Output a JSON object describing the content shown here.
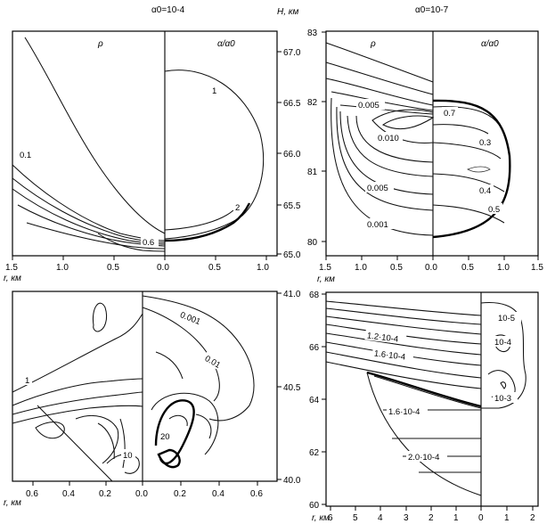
{
  "figure": {
    "top_left_title": "α0=10-4",
    "top_right_title": "α0=10-7"
  },
  "chart_data": [
    {
      "type": "contour",
      "panel": "top-left",
      "left_half_label": "ρ",
      "right_half_label": "α/α0",
      "xlabel": "r, км",
      "ylabel": "H, км",
      "x_ticks_left": [
        "1.5",
        "1.0",
        "0.5",
        "0.0"
      ],
      "x_ticks_right": [
        "0.5",
        "1.0"
      ],
      "y_ticks": [
        "65.0",
        "65.5",
        "66.0",
        "66.5",
        "67.0"
      ],
      "ylim": [
        65.0,
        67.2
      ],
      "contour_labels_left": [
        "0.1",
        "0.6"
      ],
      "contour_labels_right": [
        "1",
        "2"
      ]
    },
    {
      "type": "contour",
      "panel": "top-right",
      "left_half_label": "ρ",
      "right_half_label": "α/α0",
      "xlabel": "r, км",
      "x_ticks_left": [
        "1.5",
        "1.0",
        "0.5",
        "0.0"
      ],
      "x_ticks_right": [
        "0.5",
        "1.0",
        "1.5"
      ],
      "y_ticks": [
        "80",
        "81",
        "82",
        "83"
      ],
      "ylim": [
        79.8,
        83
      ],
      "contour_labels_left": [
        "0.005",
        "0.010",
        "0.005",
        "0.001"
      ],
      "contour_labels_right": [
        "0.7",
        "0.3",
        "0.4",
        "0.5"
      ]
    },
    {
      "type": "contour",
      "panel": "bottom-left",
      "xlabel": "r, км",
      "x_ticks_left": [
        "0.6",
        "0.4",
        "0.2",
        "0.0"
      ],
      "x_ticks_right": [
        "0.2",
        "0.4",
        "0.6"
      ],
      "y_ticks": [
        "40.0",
        "40.5",
        "41.0"
      ],
      "ylim": [
        40.0,
        41.0
      ],
      "contour_labels_left": [
        "1",
        "10"
      ],
      "contour_labels_right": [
        "0.001",
        "0.01",
        "20"
      ]
    },
    {
      "type": "contour",
      "panel": "bottom-right",
      "xlabel": "r, км",
      "x_ticks_left": [
        "6",
        "5",
        "4",
        "3",
        "2",
        "1",
        "0"
      ],
      "x_ticks_right": [
        "1",
        "2"
      ],
      "y_ticks": [
        "60",
        "62",
        "64",
        "66",
        "68"
      ],
      "ylim": [
        60,
        68
      ],
      "contour_labels_left": [
        "1.2·10-4",
        "1.6·10-4",
        "1.6·10-4",
        "2.0·10-4"
      ],
      "contour_labels_right": [
        "10-5",
        "10-4",
        "10-3"
      ]
    }
  ]
}
